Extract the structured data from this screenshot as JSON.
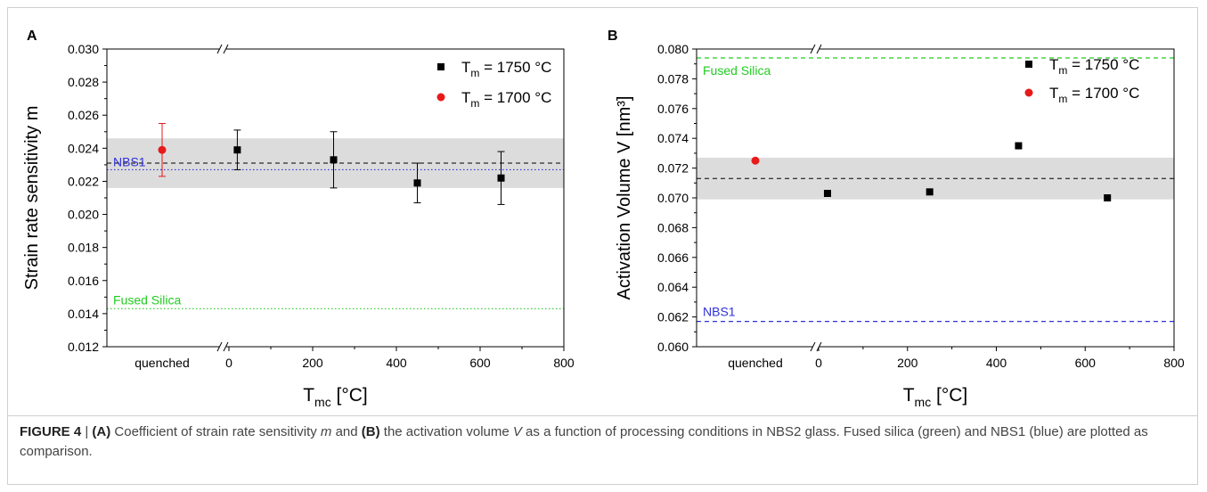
{
  "chart_data": [
    {
      "panel": "A",
      "type": "scatter",
      "ylabel": "Strain rate sensitivity m",
      "xlabel_main": "T",
      "xlabel_sub": "mc",
      "xlabel_unit": " [°C]",
      "xcategory": "quenched",
      "xticks": [
        "0",
        "200",
        "400",
        "600",
        "800"
      ],
      "x_numeric_range": [
        0,
        800
      ],
      "ylim": [
        0.012,
        0.03
      ],
      "yticks": [
        "0.012",
        "0.014",
        "0.016",
        "0.018",
        "0.020",
        "0.022",
        "0.024",
        "0.026",
        "0.028",
        "0.030"
      ],
      "band": [
        0.0216,
        0.0246
      ],
      "mean_line": 0.0231,
      "series": [
        {
          "name_main": "T",
          "name_sub": "m",
          "name_rest": " = 1750 °C",
          "color": "#000000",
          "marker": "square",
          "points": [
            {
              "x": 20,
              "y": 0.0239,
              "err": 0.0012
            },
            {
              "x": 250,
              "y": 0.0233,
              "err": 0.0017
            },
            {
              "x": 450,
              "y": 0.0219,
              "err": 0.0012
            },
            {
              "x": 650,
              "y": 0.0222,
              "err": 0.0016
            }
          ]
        },
        {
          "name_main": "T",
          "name_sub": "m",
          "name_rest": " = 1700 °C",
          "color": "#e8191b",
          "marker": "circle",
          "points": [
            {
              "x": "quenched",
              "y": 0.0239,
              "err": 0.0016
            }
          ]
        }
      ],
      "reference_lines": [
        {
          "label": "NBS1",
          "y": 0.0227,
          "color": "#3030d8",
          "style": "dotted"
        },
        {
          "label": "Fused Silica",
          "y": 0.0143,
          "color": "#22cc22",
          "style": "dotted"
        }
      ]
    },
    {
      "panel": "B",
      "type": "scatter",
      "ylabel": "Activation Volume V [nm³]",
      "xlabel_main": "T",
      "xlabel_sub": "mc",
      "xlabel_unit": " [°C]",
      "xcategory": "quenched",
      "xticks": [
        "0",
        "200",
        "400",
        "600",
        "800"
      ],
      "x_numeric_range": [
        0,
        800
      ],
      "ylim": [
        0.06,
        0.08
      ],
      "yticks": [
        "0.060",
        "0.062",
        "0.064",
        "0.066",
        "0.068",
        "0.070",
        "0.072",
        "0.074",
        "0.076",
        "0.078",
        "0.080"
      ],
      "band": [
        0.0699,
        0.0727
      ],
      "mean_line": 0.0713,
      "series": [
        {
          "name_main": "T",
          "name_sub": "m",
          "name_rest": " = 1750 °C",
          "color": "#000000",
          "marker": "square",
          "points": [
            {
              "x": 20,
              "y": 0.0703
            },
            {
              "x": 250,
              "y": 0.0704
            },
            {
              "x": 450,
              "y": 0.0735
            },
            {
              "x": 650,
              "y": 0.07
            }
          ]
        },
        {
          "name_main": "T",
          "name_sub": "m",
          "name_rest": " = 1700 °C",
          "color": "#e8191b",
          "marker": "circle",
          "points": [
            {
              "x": "quenched",
              "y": 0.0725
            }
          ]
        }
      ],
      "reference_lines": [
        {
          "label": "Fused Silica",
          "y": 0.0794,
          "color": "#22cc22",
          "style": "dashed"
        },
        {
          "label": "NBS1",
          "y": 0.0617,
          "color": "#3030d8",
          "style": "dashed"
        }
      ]
    }
  ],
  "caption": {
    "figure_label": "FIGURE 4",
    "separator": " | ",
    "part_a": "(A)",
    "text_1": " Coefficient of strain rate sensitivity ",
    "m": "m",
    "text_2": " and ",
    "part_b": "(B)",
    "text_3": " the activation volume ",
    "v": "V",
    "text_4": " as a function of processing conditions in NBS2 glass. Fused silica (green) and NBS1 (blue) are plotted as comparison."
  }
}
